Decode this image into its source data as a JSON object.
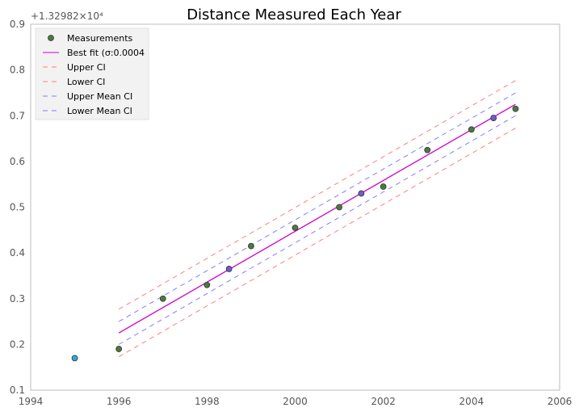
{
  "chart_data": {
    "type": "scatter",
    "title": "Distance Measured Each Year",
    "xlabel": "",
    "ylabel": "",
    "y_offset_label": "+1.32982×10⁴",
    "xlim": [
      1994,
      2006
    ],
    "ylim": [
      0.1,
      0.9
    ],
    "x_ticks": [
      1994,
      1996,
      1998,
      2000,
      2002,
      2004,
      2006
    ],
    "y_ticks": [
      0.1,
      0.2,
      0.3,
      0.4,
      0.5,
      0.6,
      0.7,
      0.8,
      0.9
    ],
    "grid": false,
    "legend_position": "top-left",
    "series": [
      {
        "name": "Measurements",
        "kind": "scatter",
        "color": "#4a7a3f",
        "x": [
          1996,
          1997,
          1998,
          1999,
          2000,
          2001,
          2002,
          2003,
          2004,
          2005
        ],
        "y": [
          0.19,
          0.3,
          0.33,
          0.415,
          0.455,
          0.5,
          0.545,
          0.625,
          0.67,
          0.715
        ]
      },
      {
        "name": "",
        "kind": "scatter",
        "color": "#2eaad1",
        "x": [
          1995
        ],
        "y": [
          0.17
        ]
      },
      {
        "name": "",
        "kind": "scatter",
        "color": "#6a5fc9",
        "x": [
          1998.5,
          2001.5,
          2004.5
        ],
        "y": [
          0.365,
          0.53,
          0.695
        ]
      },
      {
        "name": "Best fit (σ:0.0004",
        "kind": "line",
        "color": "#cc00cc",
        "dash": "solid",
        "x": [
          1996,
          2005
        ],
        "y": [
          0.225,
          0.725
        ]
      },
      {
        "name": "Upper CI",
        "kind": "line",
        "color": "#ff7f7f",
        "dash": "dashed",
        "x": [
          1996,
          2005
        ],
        "y": [
          0.277,
          0.777
        ]
      },
      {
        "name": "Lower CI",
        "kind": "line",
        "color": "#ff7f7f",
        "dash": "dashed",
        "x": [
          1996,
          2005
        ],
        "y": [
          0.173,
          0.673
        ]
      },
      {
        "name": "Upper Mean CI",
        "kind": "line",
        "color": "#7f7fff",
        "dash": "dashed",
        "x": [
          1996,
          2005
        ],
        "y": [
          0.25,
          0.75
        ]
      },
      {
        "name": "Lower Mean CI",
        "kind": "line",
        "color": "#7f7fff",
        "dash": "dashed",
        "x": [
          1996,
          2005
        ],
        "y": [
          0.2,
          0.7
        ]
      }
    ]
  }
}
